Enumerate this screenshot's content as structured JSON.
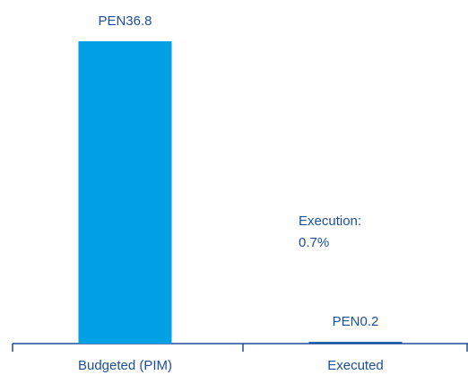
{
  "chart_data": {
    "type": "bar",
    "categories": [
      "Budgeted (PIM)",
      "Executed"
    ],
    "values": [
      36.8,
      0.2
    ],
    "value_labels": [
      "PEN36.8",
      "PEN0.2"
    ],
    "colors": [
      "#00a1e4",
      "#0b4ea2"
    ],
    "annotation": [
      "Execution:",
      "0.7%"
    ]
  }
}
